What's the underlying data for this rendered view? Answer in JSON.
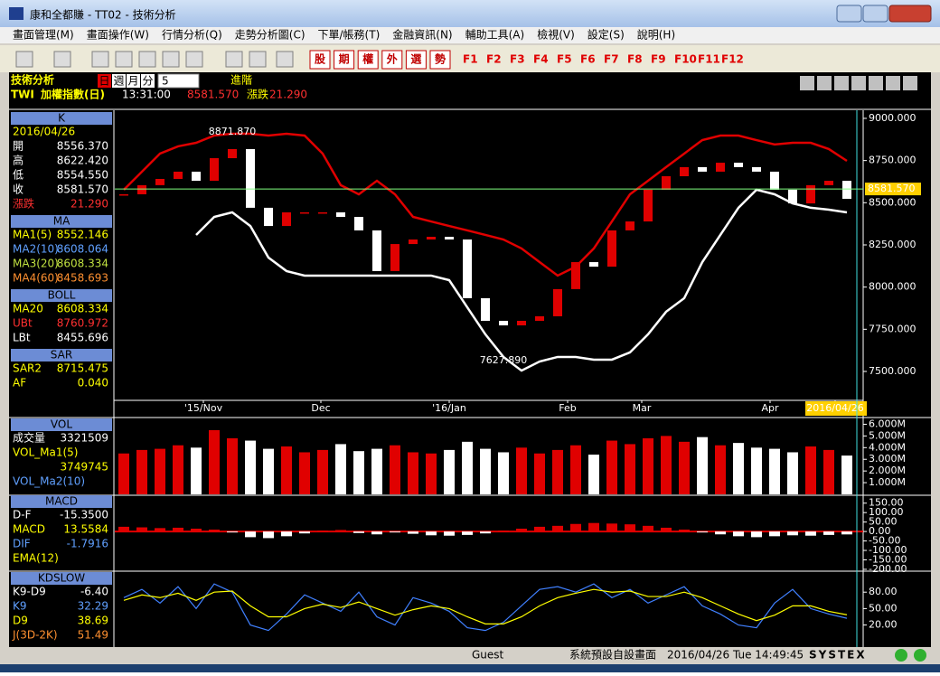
{
  "window": {
    "title": "康和全都賺 - TT02 - 技術分析"
  },
  "menu": [
    "畫面管理(M)",
    "畫面操作(W)",
    "行情分析(Q)",
    "走勢分析圖(C)",
    "下單/帳務(T)",
    "金融資訊(N)",
    "輔助工具(A)",
    "檢視(V)",
    "設定(S)",
    "說明(H)"
  ],
  "toolbar": {
    "buttons": [
      "股",
      "期",
      "權",
      "外",
      "選",
      "勢"
    ],
    "function_keys": [
      "F1",
      "F2",
      "F3",
      "F4",
      "F5",
      "F6",
      "F7",
      "F8",
      "F9",
      "F10",
      "F11",
      "F12"
    ]
  },
  "header": {
    "title": "技術分析",
    "periods": [
      "日",
      "週",
      "月",
      "分"
    ],
    "period_count": "5",
    "advance": "進階",
    "symbol": "TWI",
    "name": "加權指數(日)",
    "time": "13:31:00",
    "price": "8581.570",
    "change_label": "漲跌",
    "change": "21.290"
  },
  "info_panel": {
    "sections": [
      {
        "title": "K",
        "rows": [
          {
            "label": "2016/04/26",
            "color": "#ffff00"
          },
          {
            "label": "開",
            "value": "8556.370",
            "color": "#ffffff"
          },
          {
            "label": "高",
            "value": "8622.420",
            "color": "#ffffff"
          },
          {
            "label": "低",
            "value": "8554.550",
            "color": "#ffffff"
          },
          {
            "label": "收",
            "value": "8581.570",
            "color": "#ffffff"
          },
          {
            "label": "漲跌",
            "value": "21.290",
            "color": "#ff3030"
          }
        ]
      },
      {
        "title": "MA",
        "rows": [
          {
            "label": "MA1(5)",
            "value": "8552.146",
            "color": "#ffff00"
          },
          {
            "label": "MA2(10)",
            "value": "8608.064",
            "color": "#60a0ff"
          },
          {
            "label": "MA3(20)",
            "value": "8608.334",
            "color": "#c0e040"
          },
          {
            "label": "MA4(60)",
            "value": "8458.693",
            "color": "#ff9030"
          }
        ]
      },
      {
        "title": "BOLL",
        "rows": [
          {
            "label": "MA20",
            "value": "8608.334",
            "color": "#ffff00"
          },
          {
            "label": "UBt",
            "value": "8760.972",
            "color": "#ff3030"
          },
          {
            "label": "LBt",
            "value": "8455.696",
            "color": "#ffffff"
          }
        ]
      },
      {
        "title": "SAR",
        "rows": [
          {
            "label": "SAR2",
            "value": "8715.475",
            "color": "#ffff00"
          },
          {
            "label": "AF",
            "value": "0.040",
            "color": "#ffff00"
          }
        ]
      },
      {
        "title": "VOL",
        "rows": [
          {
            "label": "成交量",
            "value": "3321509",
            "color": "#ffffff"
          },
          {
            "label": "VOL_Ma1(5)",
            "color": "#ffff00"
          },
          {
            "value": "3749745",
            "color": "#ffff00"
          },
          {
            "label": "VOL_Ma2(10)",
            "color": "#60a0ff"
          }
        ]
      },
      {
        "title": "MACD",
        "rows": [
          {
            "label": "D-F",
            "value": "-15.3500",
            "color": "#ffffff"
          },
          {
            "label": "MACD",
            "value": "13.5584",
            "color": "#ffff00"
          },
          {
            "label": "DIF",
            "value": "-1.7916",
            "color": "#60a0ff"
          },
          {
            "label": "EMA(12)",
            "color": "#ffff00"
          }
        ]
      },
      {
        "title": "KDSLOW",
        "rows": [
          {
            "label": "K9-D9",
            "value": "-6.40",
            "color": "#ffffff"
          },
          {
            "label": "K9",
            "value": "32.29",
            "color": "#60a0ff"
          },
          {
            "label": "D9",
            "value": "38.69",
            "color": "#ffff00"
          },
          {
            "label": "J(3D-2K)",
            "value": "51.49",
            "color": "#ff9030"
          }
        ]
      }
    ]
  },
  "chart_data": [
    {
      "type": "candlestick",
      "xlim": [
        -0.5,
        40.9
      ],
      "ylim": [
        7334,
        9048
      ],
      "yticks": [
        {
          "value": 9000,
          "label": "9000.000"
        },
        {
          "value": 8750,
          "label": "8750.000"
        },
        {
          "value": 8500,
          "label": "8500.000"
        },
        {
          "value": 8250,
          "label": "8250.000"
        },
        {
          "value": 8000,
          "label": "8000.000"
        },
        {
          "value": 7750,
          "label": "7750.000"
        },
        {
          "value": 7500,
          "label": "7500.000"
        }
      ],
      "xticks": [
        {
          "value": 4.4,
          "label": "'15/Nov"
        },
        {
          "value": 10.9,
          "label": "Dec"
        },
        {
          "value": 18,
          "label": "'16/Jan"
        },
        {
          "value": 24.55,
          "label": "Feb"
        },
        {
          "value": 28.65,
          "label": "Mar"
        },
        {
          "value": 35.75,
          "label": "Apr"
        },
        {
          "value": 39.35,
          "label": "2016/04/26"
        }
      ],
      "colors": {
        "up": "#e00000",
        "down": "#ffffff"
      },
      "values": [
        8550,
        8604,
        8641,
        8684,
        8630,
        8764,
        8818,
        8470,
        8362,
        8443,
        8443,
        8443,
        8416,
        8336,
        8095,
        8255,
        8282,
        8298,
        8282,
        7934,
        7800,
        7773,
        7800,
        7827,
        7988,
        8148,
        8121,
        8336,
        8389,
        8577,
        8657,
        8711,
        8684,
        8737,
        8711,
        8684,
        8577,
        8496,
        8604,
        8630,
        8523
      ],
      "bands": [
        {
          "color": "#e00000",
          "values": [
            8577,
            8684,
            8791,
            8834,
            8855,
            8898,
            8909,
            8909,
            8898,
            8909,
            8898,
            8791,
            8604,
            8550,
            8630,
            8550,
            8416,
            8389,
            8362,
            8336,
            8309,
            8282,
            8229,
            8148,
            8068,
            8121,
            8229,
            8389,
            8550,
            8630,
            8711,
            8791,
            8871,
            8898,
            8898,
            8871,
            8845,
            8855,
            8855,
            8818,
            8748
          ]
        },
        {
          "color": "#ffffff",
          "values": [
            null,
            null,
            null,
            null,
            8309,
            8416,
            8443,
            8362,
            8175,
            8095,
            8068,
            8068,
            8068,
            8068,
            8068,
            8068,
            8068,
            8068,
            8041,
            7880,
            7720,
            7586,
            7505,
            7559,
            7586,
            7586,
            7570,
            7570,
            7613,
            7720,
            7854,
            7934,
            8148,
            8309,
            8470,
            8577,
            8550,
            8496,
            8470,
            8459,
            8443
          ]
        }
      ],
      "last_price": {
        "value": 8581.57,
        "label": "8581.570"
      },
      "annotations": [
        {
          "label": "8871.870",
          "value": 8871.87,
          "x": 6
        },
        {
          "label": "7627.890",
          "value": 7627.89,
          "x": 21
        }
      ]
    },
    {
      "type": "bar",
      "ylim": [
        0,
        6.5
      ],
      "yticks": [
        {
          "value": 6,
          "label": "6.000M"
        },
        {
          "value": 5,
          "label": "5.000M"
        },
        {
          "value": 4,
          "label": "4.000M"
        },
        {
          "value": 3,
          "label": "3.000M"
        },
        {
          "value": 2,
          "label": "2.000M"
        },
        {
          "value": 1,
          "label": "1.000M"
        }
      ],
      "values": [
        3.5,
        3.8,
        3.9,
        4.2,
        4.0,
        5.5,
        4.8,
        4.6,
        3.9,
        4.1,
        3.6,
        3.8,
        4.3,
        3.7,
        3.9,
        4.2,
        3.6,
        3.5,
        3.8,
        4.5,
        3.9,
        3.6,
        4.0,
        3.5,
        3.8,
        4.2,
        3.4,
        4.6,
        4.3,
        4.8,
        5.0,
        4.5,
        4.9,
        4.2,
        4.4,
        4.0,
        3.9,
        3.6,
        4.1,
        3.8,
        3.32
      ]
    },
    {
      "type": "histogram",
      "ylim": [
        -205,
        187
      ],
      "colors": {
        "up": "#e00000",
        "down": "#ffffff"
      },
      "yticks": [
        {
          "value": 150,
          "label": "150.00"
        },
        {
          "value": 100,
          "label": "100.00"
        },
        {
          "value": 50,
          "label": "50.00"
        },
        {
          "value": 0,
          "label": "0.00"
        },
        {
          "value": -50,
          "label": "-50.00"
        },
        {
          "value": -100,
          "label": "-100.00"
        },
        {
          "value": -150,
          "label": "-150.00"
        },
        {
          "value": -200,
          "label": "-200.00"
        }
      ],
      "values": [
        25,
        22,
        18,
        20,
        15,
        10,
        -5,
        -30,
        -35,
        -25,
        -10,
        5,
        8,
        -8,
        -15,
        -5,
        -12,
        -20,
        -22,
        -18,
        -10,
        5,
        15,
        25,
        30,
        40,
        45,
        42,
        38,
        30,
        20,
        10,
        -5,
        -15,
        -25,
        -30,
        -25,
        -20,
        -22,
        -18,
        -15.35
      ]
    },
    {
      "type": "line",
      "ylim": [
        -17,
        115
      ],
      "yticks": [
        {
          "value": 80,
          "label": "80.00"
        },
        {
          "value": 50,
          "label": "50.00"
        },
        {
          "value": 20,
          "label": "20.00"
        }
      ],
      "series": [
        {
          "color": "#4080ff",
          "values": [
            70,
            85,
            60,
            90,
            50,
            95,
            80,
            20,
            10,
            40,
            75,
            60,
            45,
            80,
            35,
            20,
            70,
            60,
            45,
            15,
            10,
            25,
            55,
            85,
            90,
            80,
            95,
            70,
            85,
            60,
            75,
            90,
            55,
            40,
            20,
            15,
            60,
            85,
            50,
            40,
            32.29
          ]
        },
        {
          "color": "#ffff00",
          "values": [
            65,
            75,
            70,
            78,
            65,
            80,
            82,
            55,
            35,
            35,
            50,
            58,
            52,
            62,
            50,
            38,
            48,
            55,
            50,
            35,
            22,
            22,
            35,
            55,
            70,
            78,
            85,
            80,
            82,
            72,
            72,
            80,
            70,
            55,
            40,
            28,
            38,
            55,
            55,
            45,
            38.69
          ]
        }
      ]
    }
  ],
  "status": {
    "user": "Guest",
    "page": "系統預設自設畫面",
    "datetime": "2016/04/26 Tue 14:49:45",
    "brand": "SYSTEX"
  }
}
